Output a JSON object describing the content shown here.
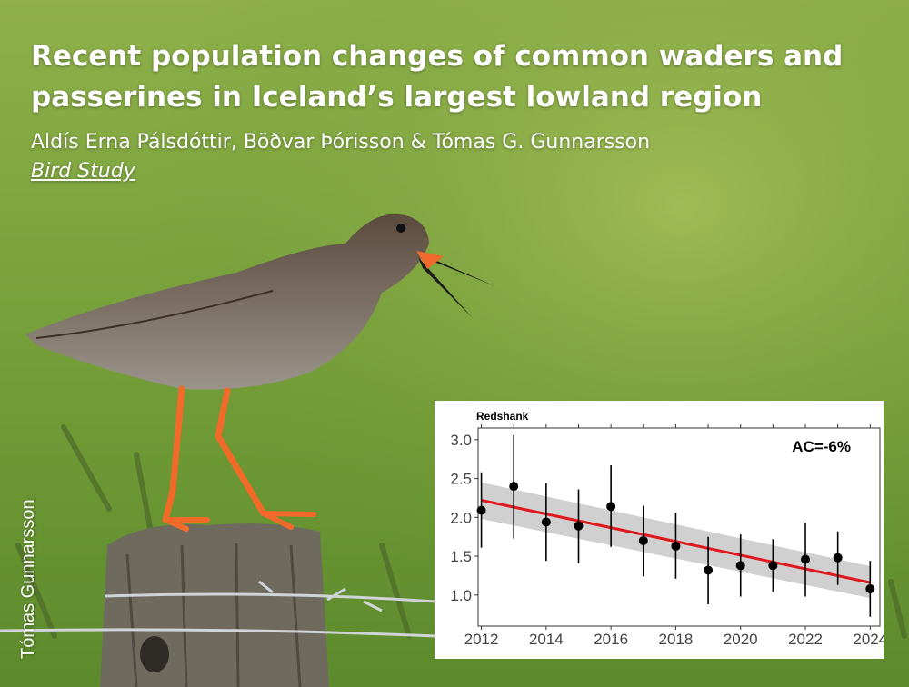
{
  "header": {
    "title": "Recent population changes of common waders and passerines in Iceland’s largest lowland region",
    "authors": "Aldís Erna Pálsdóttir, Böðvar Þórisson & Tómas G. Gunnarsson",
    "journal": "Bird Study"
  },
  "photo": {
    "credit": "Tómas Gunnarsson",
    "background_color": "#7aa23e",
    "subject_icon": "redshank-bird-icon"
  },
  "chart_data": {
    "type": "scatter",
    "title": "Redshank",
    "annotation": "AC=-6%",
    "x": [
      2012,
      2013,
      2014,
      2015,
      2016,
      2017,
      2018,
      2019,
      2020,
      2021,
      2022,
      2023,
      2024
    ],
    "y": [
      2.09,
      2.4,
      1.94,
      1.89,
      2.14,
      1.7,
      1.63,
      1.32,
      1.38,
      1.38,
      1.46,
      1.48,
      1.08
    ],
    "y_low": [
      1.61,
      1.73,
      1.44,
      1.41,
      1.62,
      1.24,
      1.21,
      0.88,
      0.98,
      1.04,
      0.98,
      1.13,
      0.72
    ],
    "y_high": [
      2.58,
      3.06,
      2.44,
      2.36,
      2.67,
      2.15,
      2.06,
      1.75,
      1.78,
      1.72,
      1.93,
      1.82,
      1.44
    ],
    "trend": {
      "x": [
        2012,
        2024
      ],
      "y": [
        2.22,
        1.16
      ],
      "band_low": [
        1.98,
        0.96
      ],
      "band_high": [
        2.45,
        1.37
      ]
    },
    "xticks": [
      2012,
      2014,
      2016,
      2018,
      2020,
      2022,
      2024
    ],
    "yticks": [
      1.0,
      1.5,
      2.0,
      2.5,
      3.0
    ],
    "ytick_labels": [
      "1.0",
      "1.5",
      "2.0",
      "2.5",
      "3.0"
    ],
    "xlim": [
      2011.9,
      2024.3
    ],
    "ylim": [
      0.6,
      3.15
    ],
    "xlabel": "",
    "ylabel": "",
    "grid": false,
    "colors": {
      "points": "#000000",
      "trend": "#e0191e",
      "band": "#c8c8c8"
    }
  }
}
